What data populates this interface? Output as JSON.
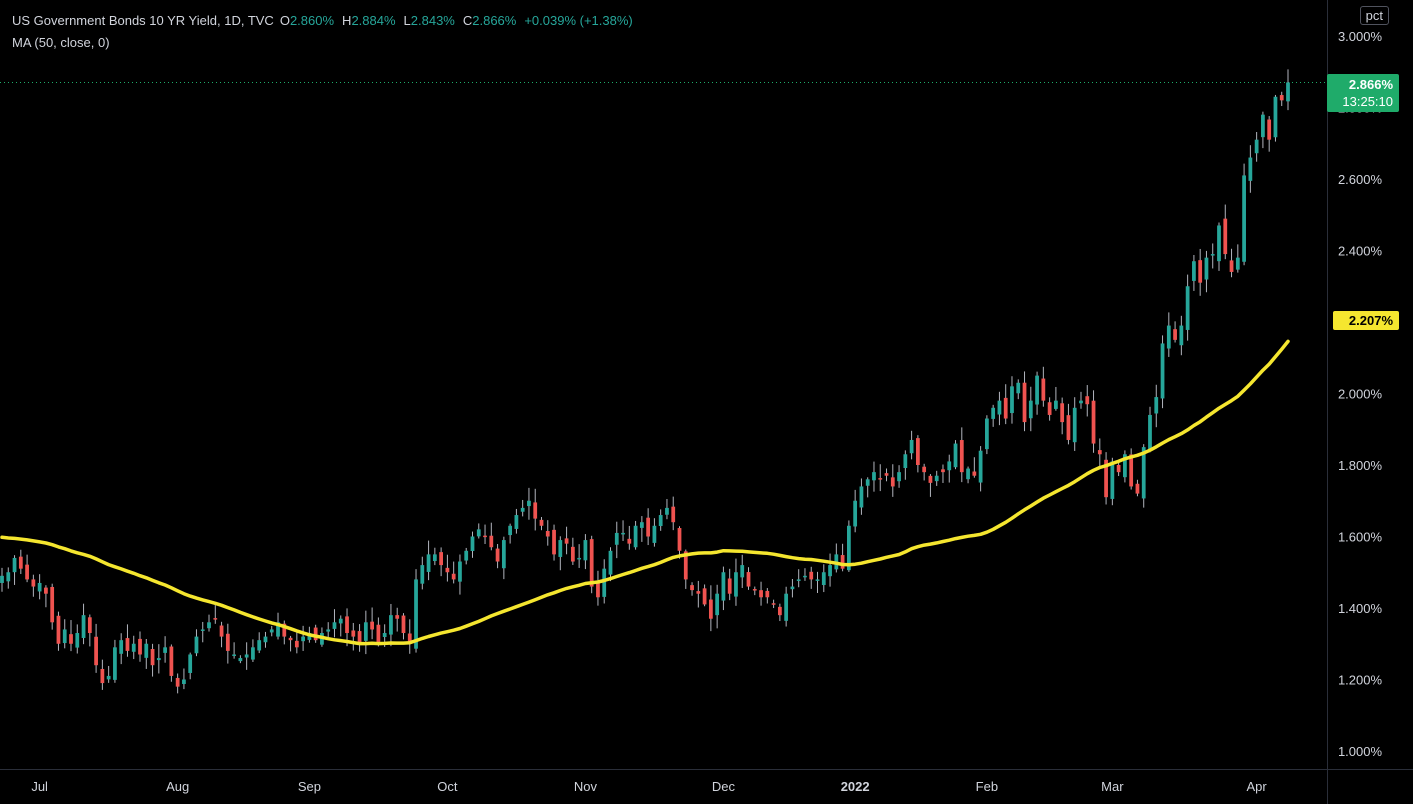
{
  "legend": {
    "title": "US Government Bonds 10 YR Yield, 1D, TVC",
    "o_key": "O",
    "o_val": "2.860%",
    "h_key": "H",
    "h_val": "2.884%",
    "l_key": "L",
    "l_val": "2.843%",
    "c_key": "C",
    "c_val": "2.866%",
    "change": "+0.039% (+1.38%)",
    "ma_label": "MA (50, close, 0)"
  },
  "axis": {
    "unit": "pct"
  },
  "price_tag": {
    "value": "2.866%",
    "time": "13:25:10",
    "ma_value": "2.207%"
  },
  "colors": {
    "up": "#26a69a",
    "down": "#ef5350",
    "ma": "#f5e62f",
    "bg": "#000000",
    "text": "#d1d4dc",
    "tag_up": "#1fab6a"
  },
  "chart_data": {
    "type": "candlestick",
    "title": "US Government Bonds 10 YR Yield, 1D, TVC",
    "ylim": [
      0.95,
      3.05
    ],
    "y_ticks": [
      "1.000%",
      "1.200%",
      "1.400%",
      "1.600%",
      "1.800%",
      "2.000%",
      "2.200%",
      "2.400%",
      "2.600%",
      "2.800%",
      "3.000%"
    ],
    "y_tick_values": [
      1.0,
      1.2,
      1.4,
      1.6,
      1.8,
      2.0,
      2.2,
      2.4,
      2.6,
      2.8,
      3.0
    ],
    "x_ticks": [
      "Jul",
      "Aug",
      "Sep",
      "Oct",
      "Nov",
      "Dec",
      "2022",
      "Feb",
      "Mar",
      "Apr"
    ],
    "x_tick_bar_index": [
      6,
      28,
      49,
      71,
      93,
      115,
      136,
      157,
      177,
      200
    ],
    "grid": false,
    "series": [
      {
        "name": "US Government Bonds 10 YR Yield",
        "kind": "candles",
        "close": [
          1.49,
          1.5,
          1.54,
          1.51,
          1.48,
          1.46,
          1.47,
          1.44,
          1.36,
          1.3,
          1.34,
          1.3,
          1.33,
          1.38,
          1.33,
          1.24,
          1.19,
          1.21,
          1.29,
          1.31,
          1.28,
          1.3,
          1.27,
          1.3,
          1.24,
          1.26,
          1.29,
          1.21,
          1.18,
          1.2,
          1.27,
          1.32,
          1.34,
          1.36,
          1.37,
          1.32,
          1.28,
          1.27,
          1.26,
          1.27,
          1.29,
          1.31,
          1.32,
          1.34,
          1.36,
          1.32,
          1.31,
          1.29,
          1.32,
          1.33,
          1.31,
          1.33,
          1.34,
          1.36,
          1.37,
          1.33,
          1.32,
          1.3,
          1.36,
          1.34,
          1.3,
          1.33,
          1.38,
          1.37,
          1.33,
          1.3,
          1.48,
          1.52,
          1.55,
          1.55,
          1.52,
          1.5,
          1.48,
          1.53,
          1.56,
          1.6,
          1.62,
          1.6,
          1.57,
          1.53,
          1.59,
          1.63,
          1.66,
          1.68,
          1.7,
          1.65,
          1.63,
          1.6,
          1.55,
          1.59,
          1.58,
          1.53,
          1.54,
          1.59,
          1.46,
          1.43,
          1.51,
          1.56,
          1.61,
          1.61,
          1.58,
          1.63,
          1.64,
          1.6,
          1.63,
          1.66,
          1.68,
          1.64,
          1.56,
          1.48,
          1.45,
          1.44,
          1.41,
          1.37,
          1.44,
          1.5,
          1.44,
          1.5,
          1.52,
          1.46,
          1.45,
          1.43,
          1.43,
          1.41,
          1.38,
          1.44,
          1.46,
          1.48,
          1.49,
          1.48,
          1.48,
          1.5,
          1.52,
          1.55,
          1.51,
          1.63,
          1.7,
          1.74,
          1.76,
          1.78,
          1.76,
          1.77,
          1.74,
          1.78,
          1.83,
          1.87,
          1.8,
          1.78,
          1.75,
          1.77,
          1.78,
          1.81,
          1.86,
          1.78,
          1.79,
          1.77,
          1.84,
          1.93,
          1.96,
          1.98,
          1.93,
          2.02,
          2.03,
          1.92,
          1.98,
          2.05,
          1.98,
          1.94,
          1.98,
          1.92,
          1.87,
          1.96,
          1.98,
          1.97,
          1.86,
          1.83,
          1.71,
          1.81,
          1.78,
          1.83,
          1.74,
          1.72,
          1.85,
          1.94,
          1.99,
          2.14,
          2.19,
          2.15,
          2.19,
          2.3,
          2.37,
          2.31,
          2.38,
          2.39,
          2.47,
          2.39,
          2.34,
          2.38,
          2.61,
          2.66,
          2.71,
          2.78,
          2.71,
          2.83,
          2.82,
          2.87
        ]
      }
    ],
    "ma": {
      "name": "MA (50, close, 0)",
      "last_value": 2.207
    }
  }
}
